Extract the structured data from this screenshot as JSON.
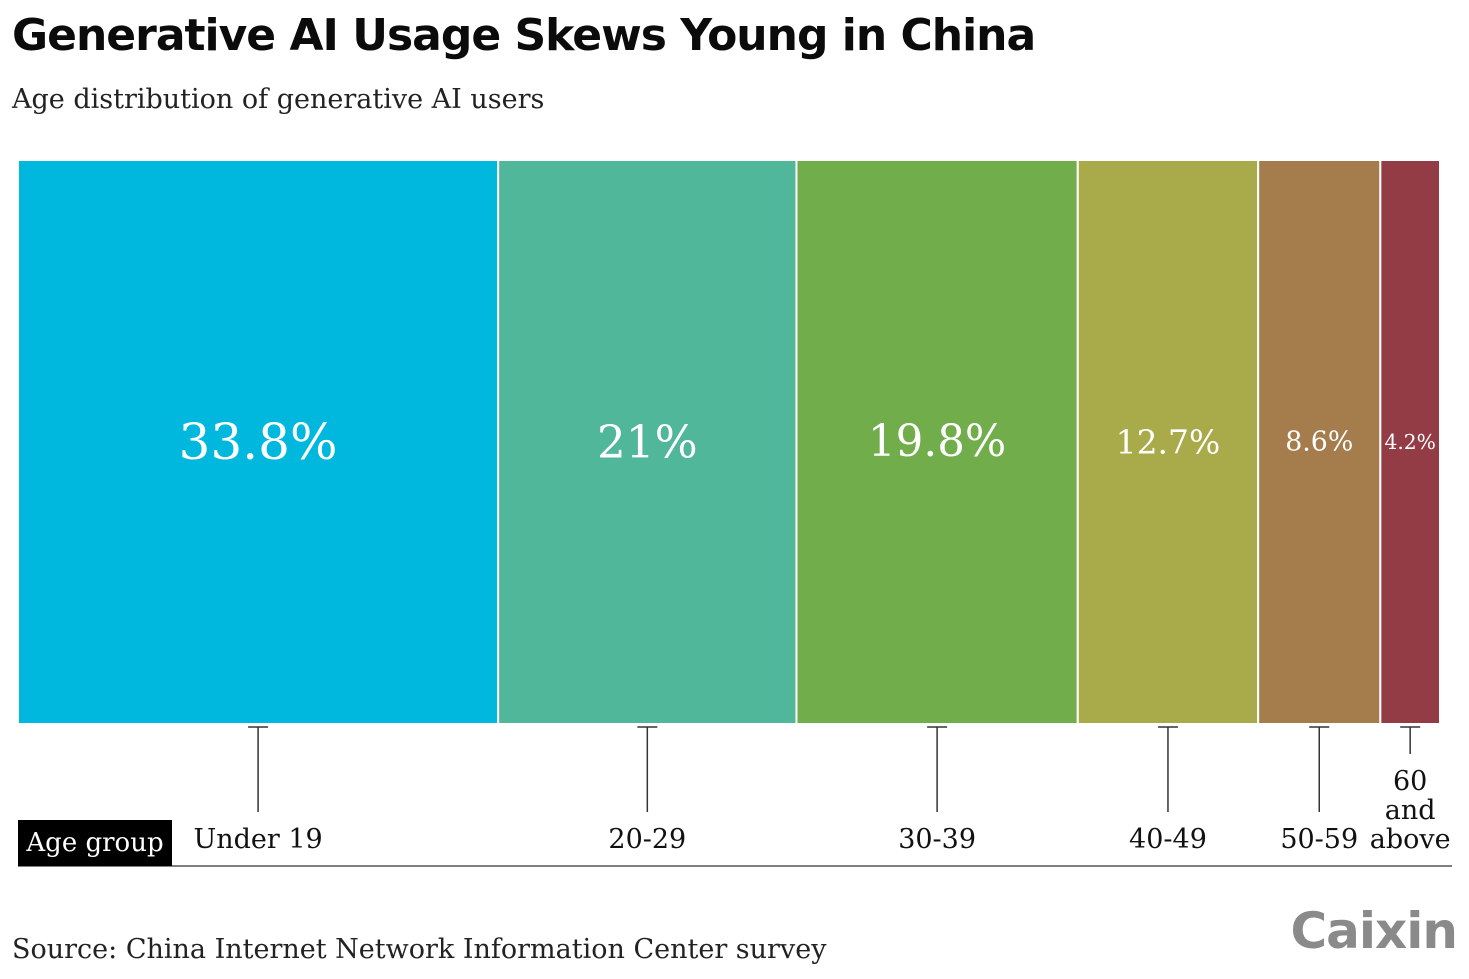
{
  "header": {
    "title": "Generative AI Usage Skews Young in China",
    "subtitle": "Age distribution of generative AI users"
  },
  "footer": {
    "source": "Source: China Internet Network Information Center survey",
    "logo": "Caixin"
  },
  "chart_data": {
    "type": "bar",
    "subtype": "marimekko-100-percent",
    "title": "Generative AI Usage Skews Young in China",
    "subtitle": "Age distribution of generative AI users",
    "axis_label": "Age group",
    "categories": [
      "Under 19",
      "20-29",
      "30-39",
      "40-49",
      "50-59",
      "60 and above"
    ],
    "category_label_lines": [
      [
        "Under 19"
      ],
      [
        "20-29"
      ],
      [
        "30-39"
      ],
      [
        "40-49"
      ],
      [
        "50-59"
      ],
      [
        "60",
        "and",
        "above"
      ]
    ],
    "values": [
      33.8,
      21,
      19.8,
      12.7,
      8.6,
      4.2
    ],
    "value_labels": [
      "33.8%",
      "21%",
      "19.8%",
      "12.7%",
      "8.6%",
      "4.2%"
    ],
    "colors": [
      "#00b8de",
      "#51b79a",
      "#71ad4a",
      "#a9aa4a",
      "#a57c4b",
      "#933c45"
    ],
    "label_color": "#ffffff",
    "axis_label_bg": "#000000",
    "axis_label_color": "#ffffff",
    "legend": "none",
    "grid": false
  }
}
